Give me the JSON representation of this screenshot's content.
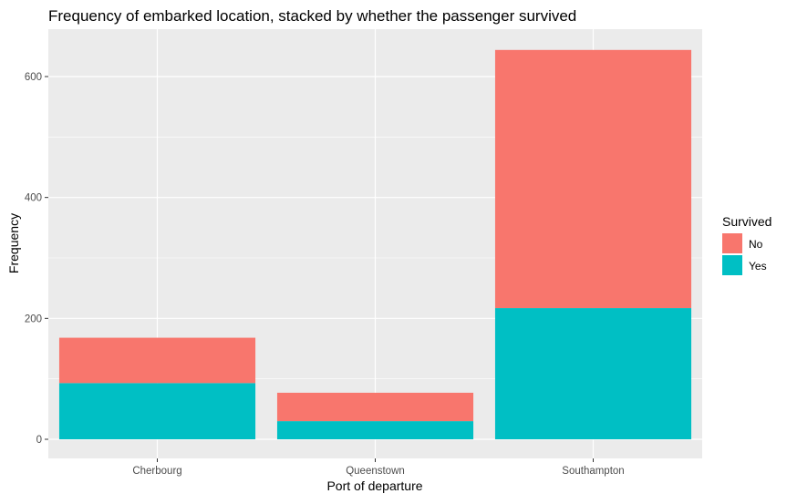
{
  "chart_data": {
    "type": "bar",
    "stacked": true,
    "title": "Frequency of embarked location, stacked by whether the passenger survived",
    "xlabel": "Port of departure",
    "ylabel": "Frequency",
    "categories": [
      "Cherbourg",
      "Queenstown",
      "Southampton"
    ],
    "series": [
      {
        "name": "No",
        "values": [
          75,
          47,
          427
        ],
        "color": "#F8766D"
      },
      {
        "name": "Yes",
        "values": [
          93,
          30,
          217
        ],
        "color": "#00BFC4"
      }
    ],
    "stack_order": [
      "Yes",
      "No"
    ],
    "ylim": [
      0,
      675
    ],
    "yticks": [
      0,
      200,
      400,
      600
    ],
    "grid": true,
    "legend": {
      "title": "Survived",
      "position": "right",
      "items": [
        "No",
        "Yes"
      ]
    },
    "panel_background": "#EBEBEB",
    "grid_color": "#FFFFFF"
  }
}
